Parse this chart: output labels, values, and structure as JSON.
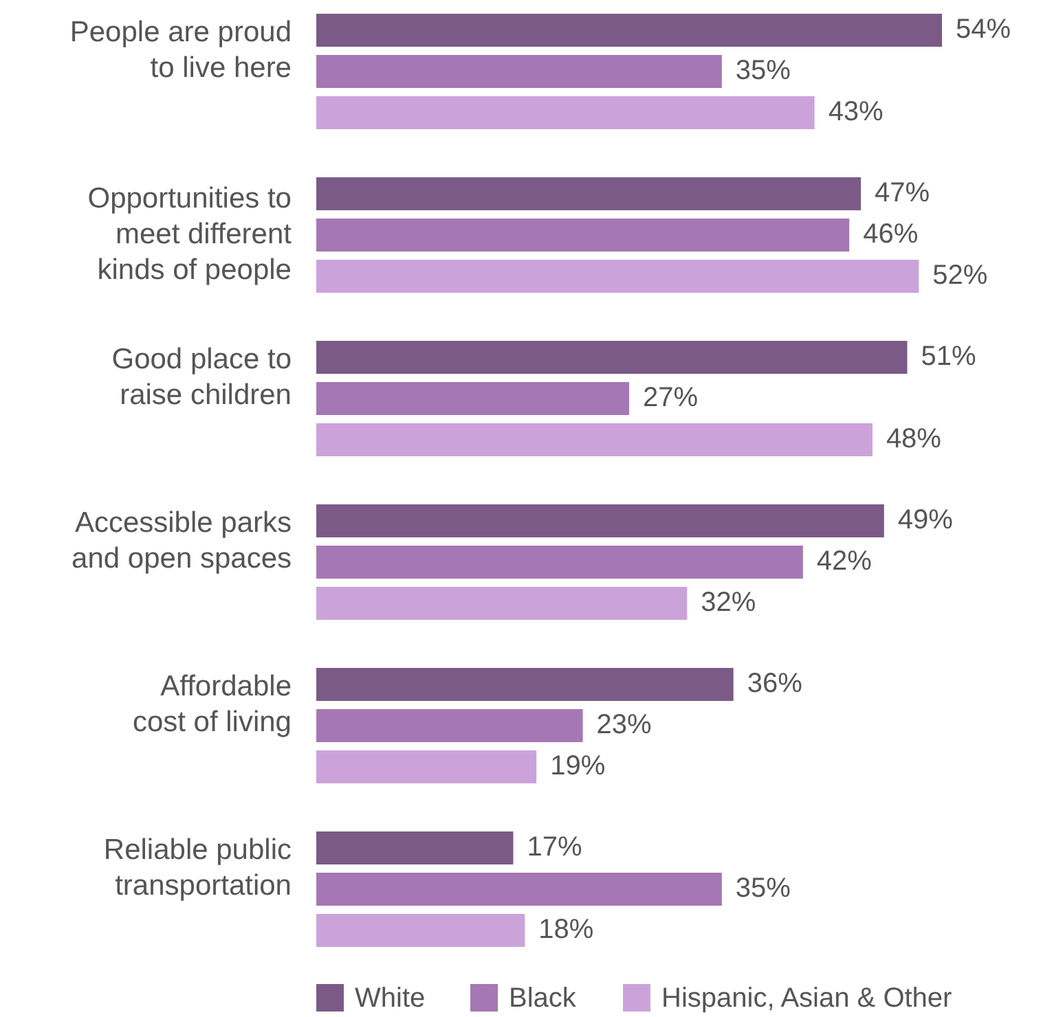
{
  "chart_data": {
    "type": "bar",
    "orientation": "horizontal",
    "legend": "bottom",
    "categories": [
      "People are proud\nto live here",
      "Opportunities to\nmeet different\nkinds of people",
      "Good place to\nraise children",
      "Accessible parks\nand open spaces",
      "Affordable\ncost of living",
      "Reliable public\ntransportation"
    ],
    "series": [
      {
        "name": "White",
        "color": "#7b5a87",
        "values": [
          54,
          47,
          51,
          49,
          36,
          17
        ],
        "value_labels": [
          "54%",
          "47%",
          "51%",
          "49%",
          "36%",
          "17%"
        ]
      },
      {
        "name": "Black",
        "color": "#a577b4",
        "values": [
          35,
          46,
          27,
          42,
          23,
          35
        ],
        "value_labels": [
          "35%",
          "46%",
          "27%",
          "42%",
          "23%",
          "35%"
        ]
      },
      {
        "name": "Hispanic, Asian & Other",
        "color": "#cba3da",
        "values": [
          43,
          52,
          48,
          32,
          19,
          18
        ],
        "value_labels": [
          "43%",
          "52%",
          "48%",
          "32%",
          "19%",
          "18%"
        ]
      }
    ]
  }
}
